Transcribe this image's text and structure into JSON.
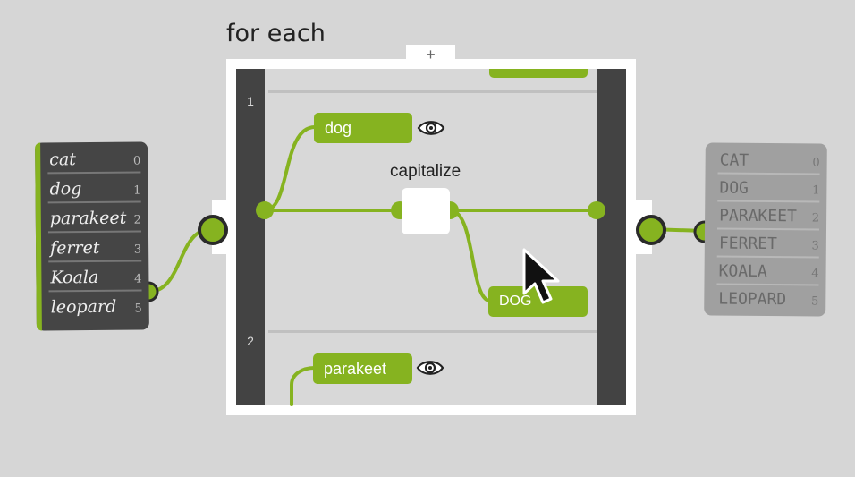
{
  "title": "for each",
  "add_button": "+",
  "iterations": [
    {
      "index": "1",
      "item": "dog",
      "result": "DOG"
    },
    {
      "index": "2",
      "item": "parakeet"
    }
  ],
  "function": {
    "label": "capitalize"
  },
  "input_list": {
    "items": [
      "cat",
      "dog",
      "parakeet",
      "ferret",
      "Koala",
      "leopard"
    ],
    "indices": [
      "0",
      "1",
      "2",
      "3",
      "4",
      "5"
    ]
  },
  "output_list": {
    "items": [
      "CAT",
      "DOG",
      "PARAKEET",
      "FERRET",
      "KOALA",
      "LEOPARD"
    ],
    "indices": [
      "0",
      "1",
      "2",
      "3",
      "4",
      "5"
    ]
  },
  "colors": {
    "accent": "#86b320",
    "rail": "#434343",
    "port_ring": "#2a2a2a"
  },
  "icons": [
    "eye-icon",
    "cursor-icon"
  ]
}
